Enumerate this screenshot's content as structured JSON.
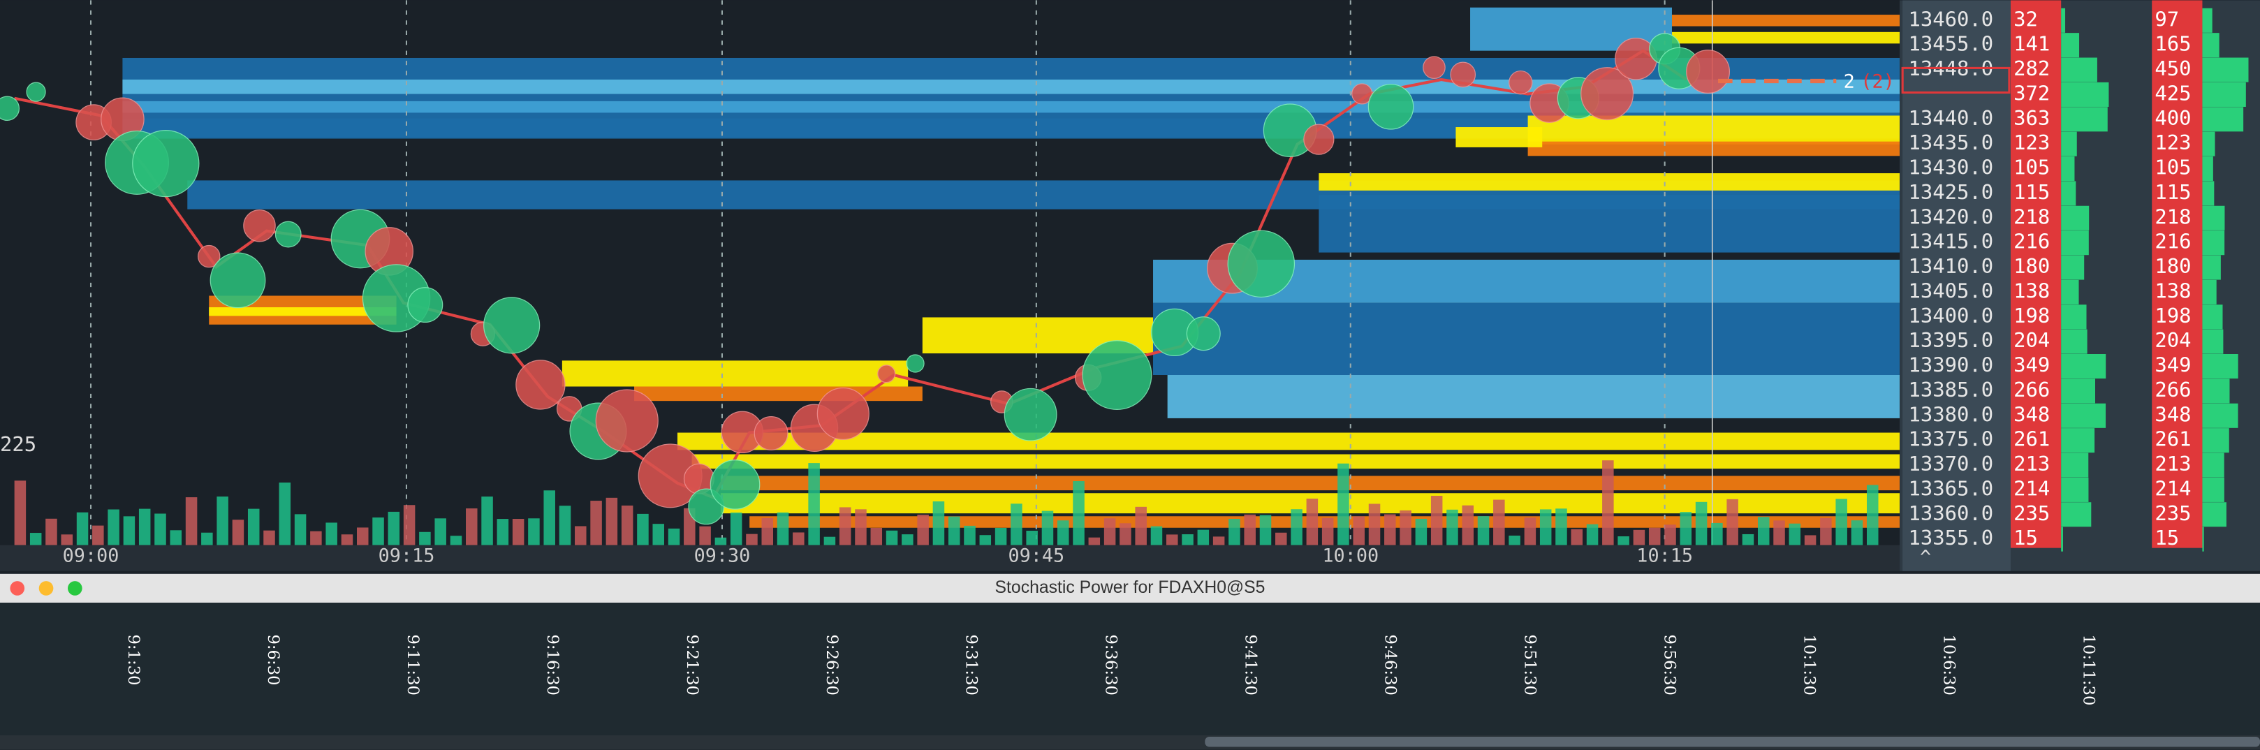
{
  "main_chart": {
    "time_labels": [
      "09:00",
      "09:15",
      "09:30",
      "09:45",
      "10:00",
      "10:15"
    ],
    "left_label": "225",
    "order": {
      "quantity": "2",
      "pending": "(2)"
    }
  },
  "ladder": {
    "rows": [
      {
        "price": "13460.0",
        "bid": 32,
        "ask": 97
      },
      {
        "price": "13455.0",
        "bid": 141,
        "ask": 165
      },
      {
        "price": "13448.0",
        "bid": 282,
        "ask": 450
      },
      {
        "price": null,
        "bid": 372,
        "ask": 425
      },
      {
        "price": "13440.0",
        "bid": 363,
        "ask": 400
      },
      {
        "price": "13435.0",
        "bid": 123,
        "ask": 123
      },
      {
        "price": "13430.0",
        "bid": 105,
        "ask": 105
      },
      {
        "price": "13425.0",
        "bid": 115,
        "ask": 115
      },
      {
        "price": "13420.0",
        "bid": 218,
        "ask": 218
      },
      {
        "price": "13415.0",
        "bid": 216,
        "ask": 216
      },
      {
        "price": "13410.0",
        "bid": 180,
        "ask": 180
      },
      {
        "price": "13405.0",
        "bid": 138,
        "ask": 138
      },
      {
        "price": "13400.0",
        "bid": 198,
        "ask": 198
      },
      {
        "price": "13395.0",
        "bid": 204,
        "ask": 204
      },
      {
        "price": "13390.0",
        "bid": 349,
        "ask": 349
      },
      {
        "price": "13385.0",
        "bid": 266,
        "ask": 266
      },
      {
        "price": "13380.0",
        "bid": 348,
        "ask": 348
      },
      {
        "price": "13375.0",
        "bid": 261,
        "ask": 261
      },
      {
        "price": "13370.0",
        "bid": 213,
        "ask": 213
      },
      {
        "price": "13365.0",
        "bid": 214,
        "ask": 214
      },
      {
        "price": "13360.0",
        "bid": 235,
        "ask": 235
      },
      {
        "price": "13355.0",
        "bid": 15,
        "ask": 15
      }
    ]
  },
  "indicator": {
    "title": "Stochastic Power for FDAXH0@S5",
    "time_labels": [
      "9:1:30",
      "9:6:30",
      "9:11:30",
      "9:16:30",
      "9:21:30",
      "9:26:30",
      "9:31:30",
      "9:36:30",
      "9:41:30",
      "9:46:30",
      "9:51:30",
      "9:56:30",
      "10:1:30",
      "10:6:30",
      "10:11:30"
    ]
  }
}
